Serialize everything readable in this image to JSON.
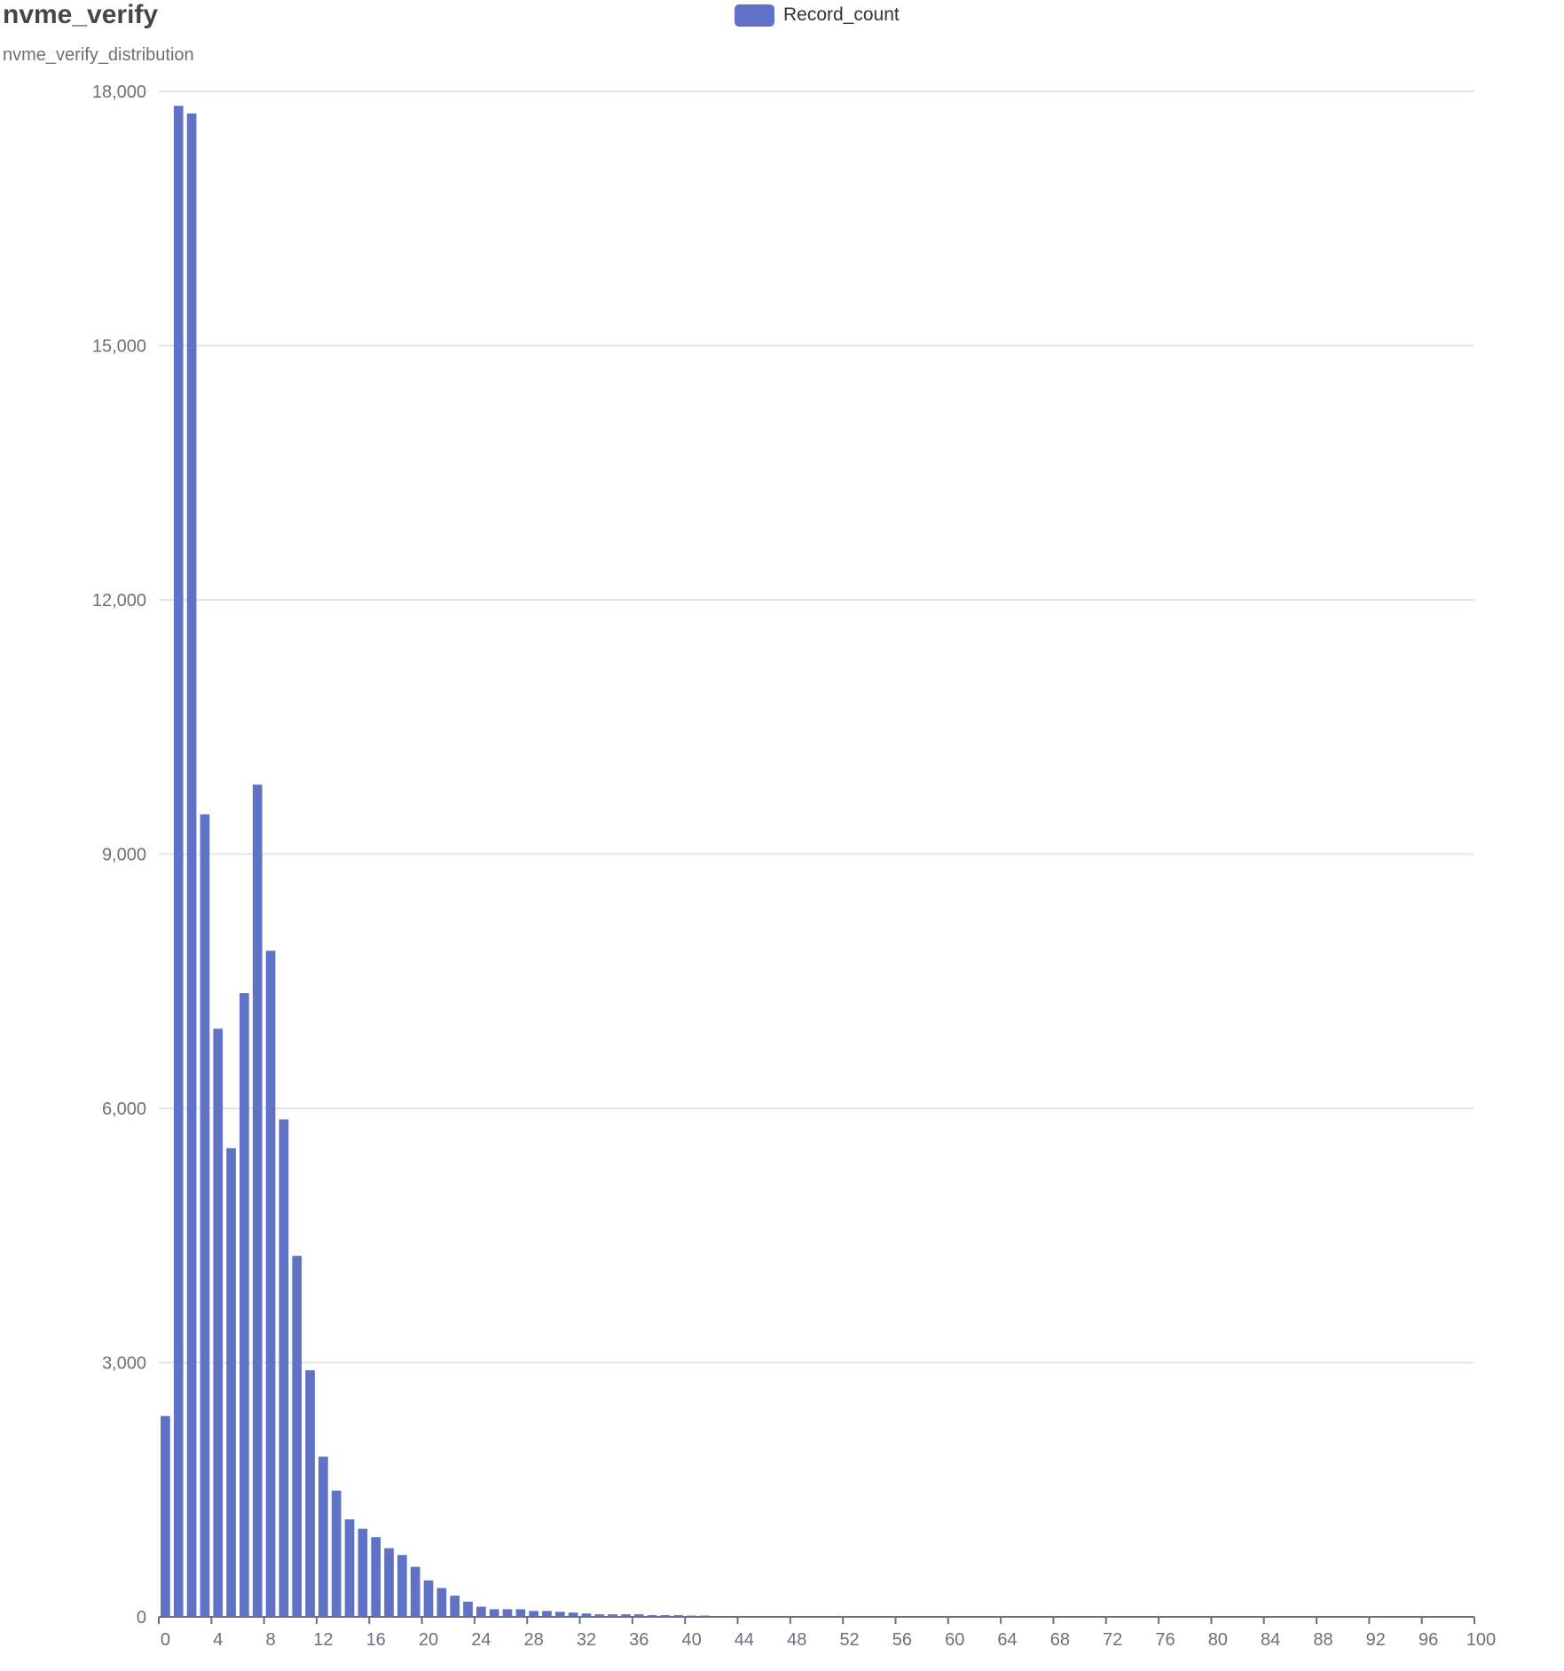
{
  "chart_data": {
    "type": "bar",
    "title": "nvme_verify",
    "subtitle": "nvme_verify_distribution",
    "xlabel": "",
    "ylabel": "",
    "xlim": [
      0,
      100
    ],
    "ylim": [
      0,
      18000
    ],
    "x_ticks": [
      0,
      4,
      8,
      12,
      16,
      20,
      24,
      28,
      32,
      36,
      40,
      44,
      48,
      52,
      56,
      60,
      64,
      68,
      72,
      76,
      80,
      84,
      88,
      92,
      96,
      100
    ],
    "y_ticks": [
      0,
      3000,
      6000,
      9000,
      12000,
      15000,
      18000
    ],
    "y_tick_labels": [
      "0",
      "3,000",
      "6,000",
      "9,000",
      "12,000",
      "15,000",
      "18,000"
    ],
    "grid": true,
    "legend_position": "top-center",
    "colors": {
      "bar": "#5f72c6",
      "grid": "#e0e6f1",
      "axis": "#6e7079",
      "tick_text": "#6e7079",
      "title": "#464646"
    },
    "series": [
      {
        "name": "Record_count",
        "x": [
          0,
          1,
          2,
          3,
          4,
          5,
          6,
          7,
          8,
          9,
          10,
          11,
          12,
          13,
          14,
          15,
          16,
          17,
          18,
          19,
          20,
          21,
          22,
          23,
          24,
          25,
          26,
          27,
          28,
          29,
          30,
          31,
          32,
          33,
          34,
          35,
          36,
          37,
          38,
          39,
          40,
          41,
          42,
          43,
          44,
          45,
          46,
          47,
          48,
          49,
          50,
          51,
          52,
          53,
          54,
          55,
          56,
          57,
          58,
          59,
          60,
          61,
          62,
          63,
          64,
          65,
          66,
          67,
          68,
          69,
          70,
          71,
          72,
          73,
          74,
          75,
          76,
          77,
          78,
          79,
          80,
          81,
          82,
          83,
          84,
          85,
          86,
          87,
          88,
          89,
          90,
          91,
          92,
          93,
          94,
          95,
          96,
          97,
          98,
          99
        ],
        "values": [
          2370,
          17830,
          17740,
          9470,
          6940,
          5530,
          7360,
          9820,
          7860,
          5870,
          4260,
          2910,
          1890,
          1490,
          1150,
          1040,
          940,
          810,
          730,
          590,
          430,
          340,
          250,
          180,
          120,
          90,
          90,
          90,
          70,
          70,
          60,
          50,
          40,
          30,
          30,
          30,
          30,
          20,
          20,
          20,
          15,
          15,
          10,
          10,
          10,
          8,
          8,
          8,
          8,
          5,
          5,
          5,
          5,
          5,
          5,
          5,
          5,
          3,
          3,
          3,
          3,
          3,
          3,
          3,
          3,
          3,
          3,
          3,
          3,
          3,
          3,
          3,
          3,
          3,
          3,
          3,
          3,
          3,
          3,
          3,
          3,
          3,
          3,
          3,
          3,
          3,
          3,
          3,
          3,
          3,
          3,
          3,
          3,
          3,
          3,
          3,
          3,
          3,
          3,
          3
        ]
      }
    ]
  }
}
